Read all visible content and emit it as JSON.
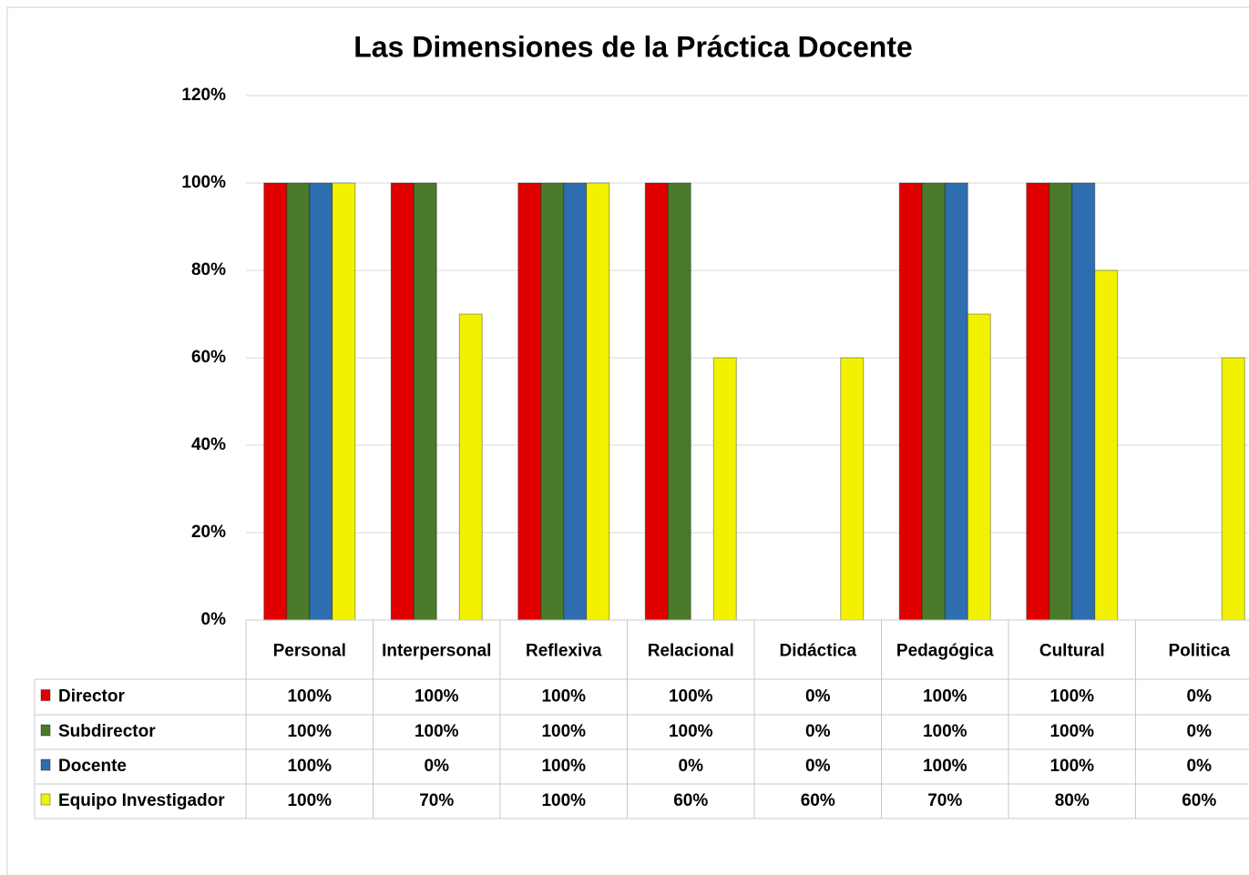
{
  "chart_data": {
    "type": "bar",
    "title": "Las Dimensiones de la Práctica Docente",
    "categories": [
      "Personal",
      "Interpersonal",
      "Reflexiva",
      "Relacional",
      "Didáctica",
      "Pedagógica",
      "Cultural",
      "Politica"
    ],
    "series": [
      {
        "name": "Director",
        "color": "#e00000",
        "values": [
          100,
          100,
          100,
          100,
          0,
          100,
          100,
          0
        ],
        "value_labels": [
          "100%",
          "100%",
          "100%",
          "100%",
          "0%",
          "100%",
          "100%",
          "0%"
        ]
      },
      {
        "name": "Subdirector",
        "color": "#4a7a2a",
        "values": [
          100,
          100,
          100,
          100,
          0,
          100,
          100,
          0
        ],
        "value_labels": [
          "100%",
          "100%",
          "100%",
          "100%",
          "0%",
          "100%",
          "100%",
          "0%"
        ]
      },
      {
        "name": "Docente",
        "color": "#2e6db0",
        "values": [
          100,
          0,
          100,
          0,
          0,
          100,
          100,
          0
        ],
        "value_labels": [
          "100%",
          "0%",
          "100%",
          "0%",
          "0%",
          "100%",
          "100%",
          "0%"
        ]
      },
      {
        "name": "Equipo Investigador",
        "color": "#f2f200",
        "values": [
          100,
          70,
          100,
          60,
          60,
          70,
          80,
          60
        ],
        "value_labels": [
          "100%",
          "70%",
          "100%",
          "60%",
          "60%",
          "70%",
          "80%",
          "60%"
        ]
      }
    ],
    "ylim": [
      0,
      120
    ],
    "yticks": [
      {
        "value": 0,
        "label": "0%"
      },
      {
        "value": 20,
        "label": "20%"
      },
      {
        "value": 40,
        "label": "40%"
      },
      {
        "value": 60,
        "label": "60%"
      },
      {
        "value": 80,
        "label": "80%"
      },
      {
        "value": 100,
        "label": "100%"
      },
      {
        "value": 120,
        "label": "120%"
      }
    ],
    "grid": true,
    "legend": "table"
  }
}
